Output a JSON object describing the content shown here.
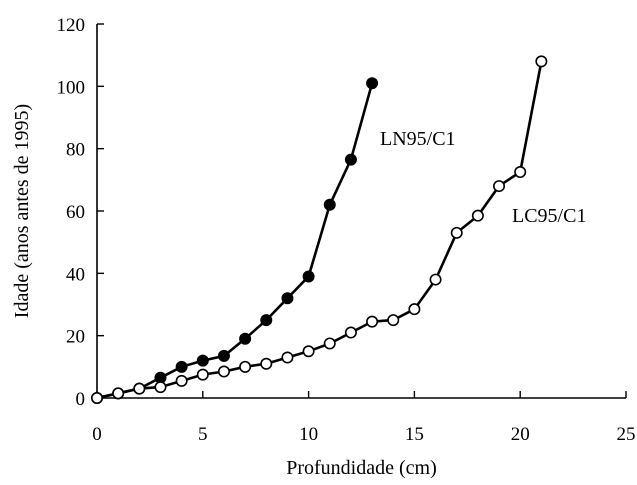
{
  "chart_data": {
    "type": "line",
    "title": "",
    "xlabel": "Profundidade (cm)",
    "ylabel": "Idade (anos antes de 1995)",
    "xlim": [
      0,
      25
    ],
    "ylim": [
      0,
      120
    ],
    "xticks": [
      0,
      5,
      10,
      15,
      20,
      25
    ],
    "yticks": [
      0,
      20,
      40,
      60,
      80,
      100,
      120
    ],
    "grid": false,
    "legend": "none",
    "series": [
      {
        "name": "LN95/C1",
        "marker": "filled-circle",
        "x": [
          0,
          1,
          2,
          3,
          4,
          5,
          6,
          7,
          8,
          9,
          10,
          11,
          12,
          13
        ],
        "y": [
          0,
          1.5,
          3,
          6.5,
          10,
          12,
          13.5,
          19,
          25,
          32,
          39,
          62,
          76.5,
          101
        ]
      },
      {
        "name": "LC95/C1",
        "marker": "open-circle",
        "x": [
          0,
          1,
          2,
          3,
          4,
          5,
          6,
          7,
          8,
          9,
          10,
          11,
          12,
          13,
          14,
          15,
          16,
          17,
          18,
          19,
          20,
          21
        ],
        "y": [
          0,
          1.5,
          3,
          3.5,
          5.5,
          7.5,
          8.5,
          10,
          11,
          13,
          15,
          17.5,
          21,
          24.5,
          25,
          28.5,
          38,
          53,
          58.5,
          68,
          72.5,
          108
        ]
      }
    ]
  }
}
